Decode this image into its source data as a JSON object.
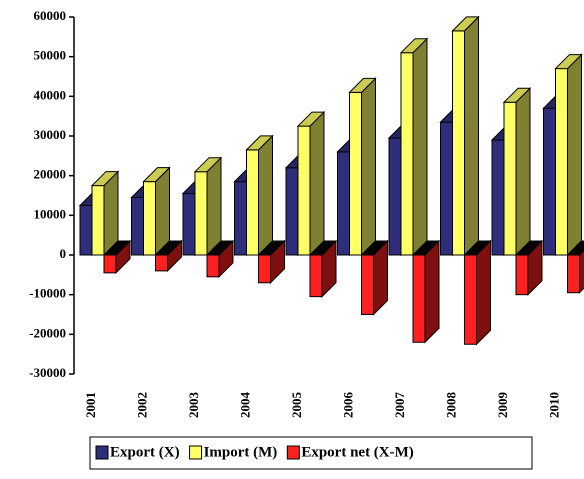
{
  "chart_data": {
    "type": "bar3d",
    "categories": [
      "2001",
      "2002",
      "2003",
      "2004",
      "2005",
      "2006",
      "2007",
      "2008",
      "2009",
      "2010"
    ],
    "series": [
      {
        "name": "Export (X)",
        "color": "#2e2e7a",
        "values": [
          12500,
          14500,
          15500,
          18500,
          22000,
          26000,
          29500,
          33500,
          29000,
          37000
        ]
      },
      {
        "name": "Import (M)",
        "color": "#ffff66",
        "values": [
          17500,
          18500,
          21000,
          26500,
          32500,
          41000,
          51000,
          56500,
          38500,
          47000
        ]
      },
      {
        "name": "Export net (X-M)",
        "color": "#ff2020",
        "values": [
          -4500,
          -4000,
          -5500,
          -7000,
          -10500,
          -15000,
          -22000,
          -22500,
          -10000,
          -9500
        ]
      }
    ],
    "ylim": [
      -30000,
      60000
    ],
    "yticks": [
      -30000,
      -20000,
      -10000,
      0,
      10000,
      20000,
      30000,
      40000,
      50000,
      60000
    ],
    "legend": "bottom"
  }
}
